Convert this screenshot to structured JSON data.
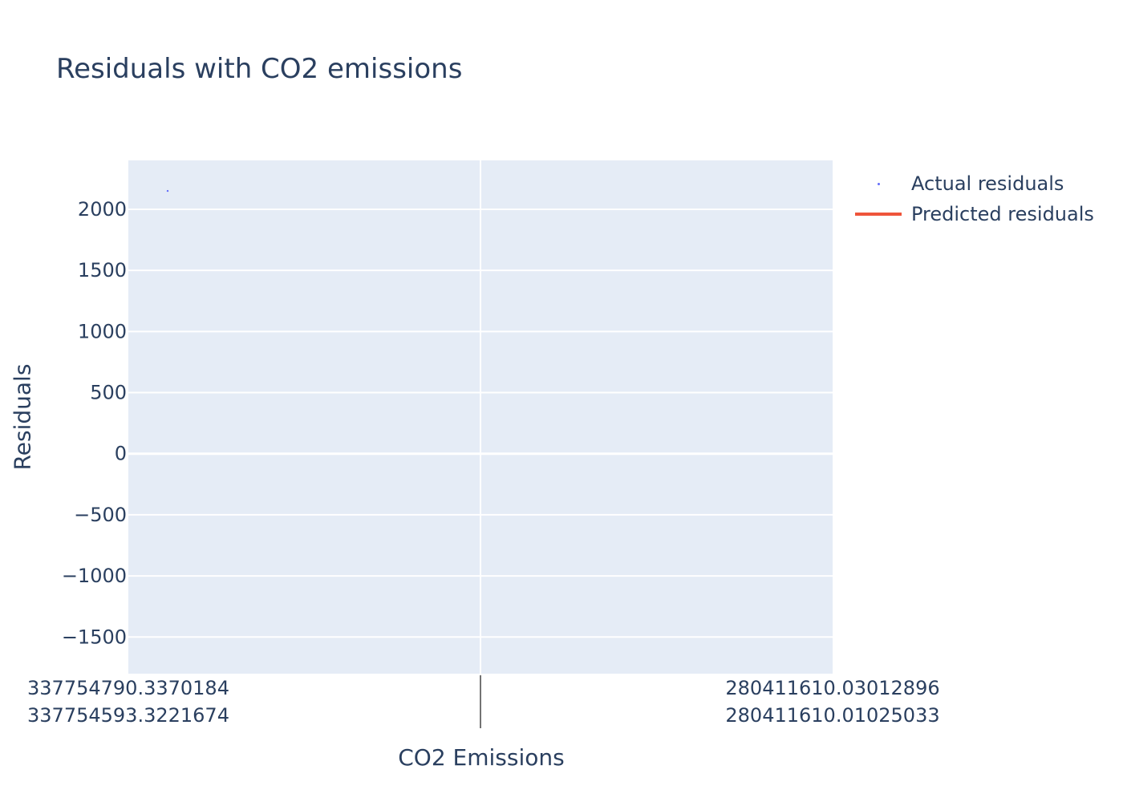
{
  "title": "Residuals with CO2 emissions",
  "chart_data": {
    "type": "scatter",
    "title": "Residuals with CO2 emissions",
    "xlabel": "CO2 Emissions",
    "ylabel": "Residuals",
    "ylim": [
      -1800,
      2400
    ],
    "y_ticks": [
      2000,
      1500,
      1000,
      500,
      0,
      -500,
      -1000,
      -1500
    ],
    "y_tick_labels": [
      "2000",
      "1500",
      "1000",
      "500",
      "0",
      "−500",
      "−1000",
      "−1500"
    ],
    "x_tick_groups": [
      {
        "labels": [
          "337754790.3370184",
          "337754593.3221674"
        ]
      },
      {
        "labels": [
          "280411610.03012896",
          "280411610.01025033"
        ]
      }
    ],
    "grid": true,
    "legend_position": "top-right",
    "series": [
      {
        "name": "Actual residuals",
        "mode": "markers",
        "color": "#636efa",
        "points": [
          {
            "x_group": 0,
            "y": 2150
          }
        ]
      },
      {
        "name": "Predicted residuals",
        "mode": "lines",
        "color": "#ef553b",
        "points": []
      }
    ]
  },
  "colors": {
    "plot_background": "#e5ecf6",
    "text": "#2a3f5f",
    "grid": "#ffffff"
  }
}
